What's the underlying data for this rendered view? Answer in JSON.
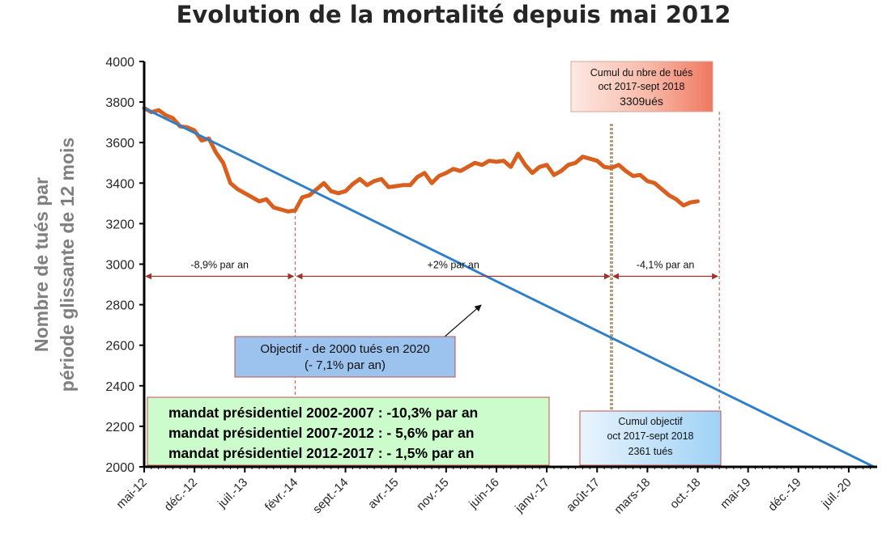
{
  "chart_data": {
    "type": "line",
    "title": "Evolution de la mortalité depuis mai 2012",
    "ylabel_lines": [
      "Nombre de tués par",
      "période  glissante de 12 mois"
    ],
    "ylim": [
      2000,
      4000
    ],
    "yticks": [
      2000,
      2200,
      2400,
      2600,
      2800,
      3000,
      3200,
      3400,
      3600,
      3800,
      4000
    ],
    "xrange_months": [
      0,
      101.5
    ],
    "xtick_labels": [
      "mai-12",
      "déc.-12",
      "juil.-13",
      "févr.-14",
      "sept.-14",
      "avr.-15",
      "nov.-15",
      "juin-16",
      "janv.-17",
      "août-17",
      "mars-18",
      "oct.-18",
      "mai-19",
      "déc.-19",
      "juil.-20"
    ],
    "xtick_months": [
      0,
      7,
      14,
      21,
      28,
      35,
      42,
      49,
      56,
      63,
      70,
      77,
      84,
      91,
      98
    ],
    "series": [
      {
        "color": "#d95f1e",
        "x_months": [
          0,
          1,
          2,
          3,
          4,
          5,
          6,
          7,
          8,
          9,
          10,
          11,
          12,
          13,
          14,
          15,
          16,
          17,
          18,
          19,
          20,
          21,
          22,
          23,
          24,
          25,
          26,
          27,
          28,
          29,
          30,
          31,
          32,
          33,
          34,
          35,
          36,
          37,
          38,
          39,
          40,
          41,
          42,
          43,
          44,
          45,
          46,
          47,
          48,
          49,
          50,
          51,
          52,
          53,
          54,
          55,
          56,
          57,
          58,
          59,
          60,
          61,
          62,
          63,
          64,
          65,
          66,
          67,
          68,
          69,
          70,
          71,
          72,
          73,
          74,
          75,
          76,
          77
        ],
        "values": [
          3770,
          3750,
          3760,
          3735,
          3720,
          3680,
          3675,
          3660,
          3610,
          3620,
          3550,
          3500,
          3400,
          3370,
          3350,
          3330,
          3310,
          3320,
          3280,
          3270,
          3260,
          3265,
          3330,
          3340,
          3370,
          3400,
          3360,
          3350,
          3360,
          3395,
          3420,
          3390,
          3410,
          3420,
          3380,
          3385,
          3390,
          3390,
          3430,
          3450,
          3400,
          3435,
          3450,
          3470,
          3460,
          3480,
          3500,
          3490,
          3510,
          3505,
          3510,
          3480,
          3545,
          3490,
          3450,
          3480,
          3490,
          3440,
          3460,
          3490,
          3500,
          3530,
          3520,
          3510,
          3480,
          3475,
          3490,
          3460,
          3435,
          3440,
          3410,
          3400,
          3370,
          3340,
          3320,
          3290,
          3305,
          3310
        ]
      },
      {
        "name": "Objectif",
        "color": "#2f7fc8",
        "x_months": [
          0,
          101.5
        ],
        "values": [
          3770,
          2000
        ]
      }
    ],
    "vlines": [
      {
        "month": 21,
        "style": "dash",
        "color": "#c0504d"
      },
      {
        "month": 65,
        "style": "dotted-thick",
        "color": "#b5a07a"
      },
      {
        "month": 80,
        "style": "dash",
        "color": "#c0504d"
      }
    ],
    "rate_segments": [
      {
        "from_month": 0,
        "to_month": 21,
        "value": 2940,
        "label": "-8,9% par an"
      },
      {
        "from_month": 21,
        "to_month": 65,
        "value": 2940,
        "label": "+2% par an"
      },
      {
        "from_month": 65,
        "to_month": 80,
        "value": 2940,
        "label": "-4,1% par an"
      }
    ],
    "annotations": {
      "cumul_real": {
        "lines": [
          "Cumul du nbre de tués",
          "oct 2017-sept 2018",
          "3309ués"
        ]
      },
      "objectif": {
        "lines": [
          "Objectif - de 2000 tués en 2020",
          "(- 7,1% par an)"
        ]
      },
      "cumul_obj": {
        "lines": [
          "Cumul objectif",
          "oct 2017-sept 2018",
          "2361 tués"
        ]
      },
      "mandats": {
        "lines": [
          "mandat présidentiel 2002-2007 : -10,3% par an",
          "mandat présidentiel 2007-2012 : - 5,6% par an",
          "mandat présidentiel 2012-2017 : - 1,5% par an"
        ]
      }
    }
  }
}
